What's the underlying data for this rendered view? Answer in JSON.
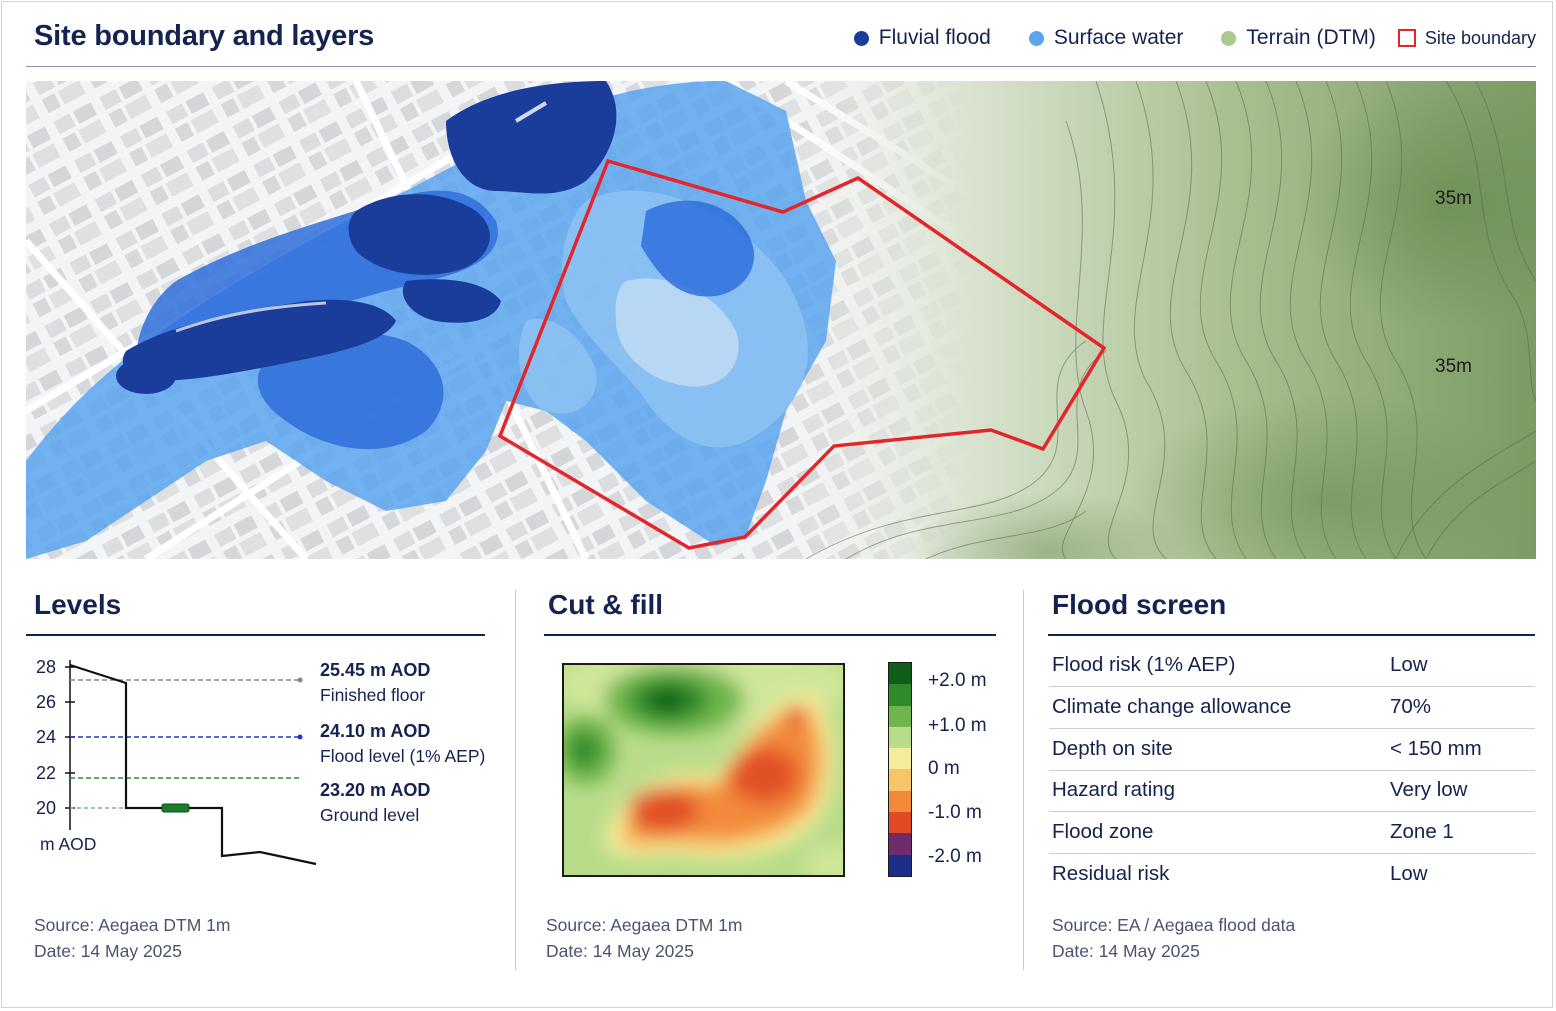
{
  "header": {
    "title": "Site boundary and layers",
    "legend": [
      {
        "label": "Fluvial flood",
        "color": "#1a3d9c"
      },
      {
        "label": "Surface water",
        "color": "#5aa5ee"
      },
      {
        "label": "Terrain (DTM)",
        "color": "#a9c98f"
      },
      {
        "label": "Site boundary",
        "color": "#e3262b"
      }
    ]
  },
  "map": {
    "contour_labels": [
      "35m",
      "35m"
    ],
    "boundary_color": "#e3262b"
  },
  "levels": {
    "title": "Levels",
    "y_ticks": [
      "28",
      "26",
      "24",
      "22",
      "20"
    ],
    "y_unit": "m AOD",
    "annotations": [
      {
        "value": "25.45 m AOD",
        "label": "Finished floor",
        "color": "#888888"
      },
      {
        "value": "24.10 m AOD",
        "label": "Flood level (1% AEP)",
        "color": "#1f36c8"
      },
      {
        "value": "23.20 m AOD",
        "label": "Ground level",
        "color": "#2a8a34"
      }
    ],
    "source": "Source: Aegaea DTM 1m",
    "date": "Date: 14 May 2025"
  },
  "cutfill": {
    "title": "Cut & fill",
    "scale_labels": [
      "+2.0 m",
      "+1.0 m",
      "0 m",
      "-1.0 m",
      "-2.0 m"
    ],
    "scale_colors": [
      "#0f5d18",
      "#2f8a2b",
      "#6eb54c",
      "#b9dc8a",
      "#f5ec9a",
      "#f8c46a",
      "#f28a3a",
      "#e04a25",
      "#6e2a6a",
      "#1c2d8a"
    ],
    "source": "Source: Aegaea DTM 1m",
    "date": "Date: 14 May 2025"
  },
  "flood_screen": {
    "title": "Flood screen",
    "rows": [
      {
        "label": "Flood risk (1% AEP)",
        "value": "Low"
      },
      {
        "label": "Climate change allowance",
        "value": "70%"
      },
      {
        "label": "Depth on site",
        "value": "< 150 mm"
      },
      {
        "label": "Hazard rating",
        "value": "Very low"
      },
      {
        "label": "Flood zone",
        "value": "Zone 1"
      },
      {
        "label": "Residual risk",
        "value": "Low"
      }
    ],
    "source": "Source: EA / Aegaea flood data",
    "date": "Date: 14 May 2025"
  }
}
